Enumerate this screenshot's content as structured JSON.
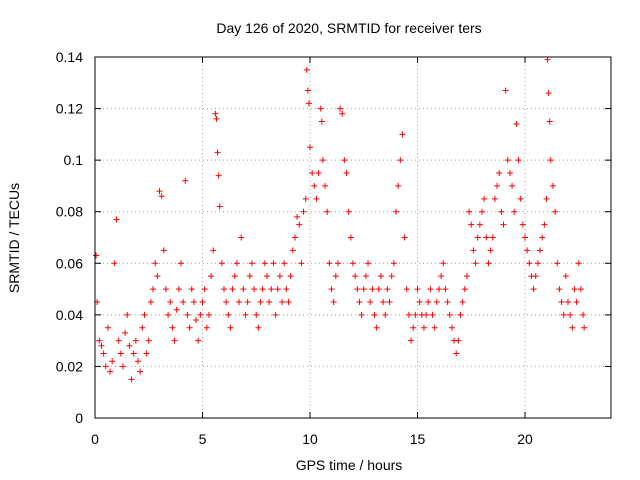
{
  "chart_data": {
    "type": "scatter",
    "title": "Day 126 of 2020, SRMTID for receiver ters",
    "xlabel": "GPS time / hours",
    "ylabel": "SRMTID / TECUs",
    "xlim": [
      0,
      24
    ],
    "ylim": [
      0,
      0.14
    ],
    "xticks": [
      0,
      5,
      10,
      15,
      20
    ],
    "xtick_labels": [
      "0",
      "5",
      "10",
      "15",
      "20"
    ],
    "yticks": [
      0,
      0.02,
      0.04,
      0.06,
      0.08,
      0.1,
      0.12,
      0.14
    ],
    "ytick_labels": [
      "0",
      "0.02",
      "0.04",
      "0.06",
      "0.08",
      "0.1",
      "0.12",
      "0.14"
    ],
    "grid": true,
    "marker": "+",
    "color": "#ff0000",
    "series": [
      {
        "name": "SRMTID",
        "points": [
          [
            0.05,
            0.063
          ],
          [
            0.1,
            0.045
          ],
          [
            0.2,
            0.03
          ],
          [
            0.3,
            0.028
          ],
          [
            0.4,
            0.025
          ],
          [
            0.5,
            0.02
          ],
          [
            0.6,
            0.035
          ],
          [
            0.7,
            0.018
          ],
          [
            0.8,
            0.022
          ],
          [
            0.9,
            0.06
          ],
          [
            1.0,
            0.077
          ],
          [
            1.1,
            0.03
          ],
          [
            1.2,
            0.025
          ],
          [
            1.3,
            0.02
          ],
          [
            1.4,
            0.033
          ],
          [
            1.5,
            0.04
          ],
          [
            1.6,
            0.028
          ],
          [
            1.7,
            0.015
          ],
          [
            1.8,
            0.025
          ],
          [
            1.9,
            0.03
          ],
          [
            2.0,
            0.022
          ],
          [
            2.1,
            0.018
          ],
          [
            2.2,
            0.035
          ],
          [
            2.3,
            0.04
          ],
          [
            2.4,
            0.025
          ],
          [
            2.5,
            0.03
          ],
          [
            2.6,
            0.045
          ],
          [
            2.7,
            0.05
          ],
          [
            2.8,
            0.06
          ],
          [
            2.9,
            0.055
          ],
          [
            3.0,
            0.088
          ],
          [
            3.1,
            0.086
          ],
          [
            3.2,
            0.065
          ],
          [
            3.3,
            0.05
          ],
          [
            3.4,
            0.04
          ],
          [
            3.5,
            0.045
          ],
          [
            3.6,
            0.035
          ],
          [
            3.7,
            0.03
          ],
          [
            3.8,
            0.042
          ],
          [
            3.9,
            0.05
          ],
          [
            4.0,
            0.06
          ],
          [
            4.1,
            0.045
          ],
          [
            4.2,
            0.092
          ],
          [
            4.3,
            0.04
          ],
          [
            4.4,
            0.035
          ],
          [
            4.5,
            0.05
          ],
          [
            4.6,
            0.045
          ],
          [
            4.7,
            0.038
          ],
          [
            4.8,
            0.03
          ],
          [
            4.9,
            0.04
          ],
          [
            5.0,
            0.045
          ],
          [
            5.1,
            0.05
          ],
          [
            5.2,
            0.035
          ],
          [
            5.3,
            0.04
          ],
          [
            5.4,
            0.055
          ],
          [
            5.5,
            0.065
          ],
          [
            5.6,
            0.118
          ],
          [
            5.65,
            0.116
          ],
          [
            5.7,
            0.103
          ],
          [
            5.75,
            0.094
          ],
          [
            5.8,
            0.082
          ],
          [
            5.9,
            0.06
          ],
          [
            6.0,
            0.05
          ],
          [
            6.1,
            0.045
          ],
          [
            6.2,
            0.04
          ],
          [
            6.3,
            0.035
          ],
          [
            6.4,
            0.05
          ],
          [
            6.5,
            0.055
          ],
          [
            6.6,
            0.06
          ],
          [
            6.7,
            0.045
          ],
          [
            6.8,
            0.07
          ],
          [
            6.9,
            0.05
          ],
          [
            7.0,
            0.04
          ],
          [
            7.1,
            0.045
          ],
          [
            7.2,
            0.055
          ],
          [
            7.3,
            0.06
          ],
          [
            7.4,
            0.05
          ],
          [
            7.5,
            0.04
          ],
          [
            7.6,
            0.035
          ],
          [
            7.7,
            0.045
          ],
          [
            7.8,
            0.05
          ],
          [
            7.9,
            0.06
          ],
          [
            8.0,
            0.055
          ],
          [
            8.1,
            0.045
          ],
          [
            8.2,
            0.05
          ],
          [
            8.3,
            0.06
          ],
          [
            8.4,
            0.04
          ],
          [
            8.5,
            0.05
          ],
          [
            8.6,
            0.055
          ],
          [
            8.7,
            0.045
          ],
          [
            8.8,
            0.06
          ],
          [
            8.9,
            0.05
          ],
          [
            9.0,
            0.045
          ],
          [
            9.1,
            0.055
          ],
          [
            9.2,
            0.065
          ],
          [
            9.3,
            0.07
          ],
          [
            9.4,
            0.078
          ],
          [
            9.5,
            0.075
          ],
          [
            9.6,
            0.06
          ],
          [
            9.7,
            0.08
          ],
          [
            9.8,
            0.085
          ],
          [
            9.85,
            0.135
          ],
          [
            9.9,
            0.127
          ],
          [
            9.95,
            0.122
          ],
          [
            10.0,
            0.105
          ],
          [
            10.1,
            0.095
          ],
          [
            10.2,
            0.09
          ],
          [
            10.3,
            0.085
          ],
          [
            10.4,
            0.095
          ],
          [
            10.5,
            0.12
          ],
          [
            10.55,
            0.115
          ],
          [
            10.6,
            0.1
          ],
          [
            10.7,
            0.09
          ],
          [
            10.8,
            0.08
          ],
          [
            10.9,
            0.06
          ],
          [
            11.0,
            0.05
          ],
          [
            11.1,
            0.045
          ],
          [
            11.2,
            0.055
          ],
          [
            11.3,
            0.06
          ],
          [
            11.4,
            0.12
          ],
          [
            11.5,
            0.118
          ],
          [
            11.6,
            0.1
          ],
          [
            11.7,
            0.095
          ],
          [
            11.8,
            0.08
          ],
          [
            11.9,
            0.07
          ],
          [
            12.0,
            0.06
          ],
          [
            12.1,
            0.055
          ],
          [
            12.2,
            0.05
          ],
          [
            12.3,
            0.045
          ],
          [
            12.4,
            0.04
          ],
          [
            12.5,
            0.05
          ],
          [
            12.6,
            0.055
          ],
          [
            12.7,
            0.06
          ],
          [
            12.8,
            0.045
          ],
          [
            12.9,
            0.05
          ],
          [
            13.0,
            0.04
          ],
          [
            13.1,
            0.035
          ],
          [
            13.2,
            0.05
          ],
          [
            13.3,
            0.055
          ],
          [
            13.4,
            0.045
          ],
          [
            13.5,
            0.04
          ],
          [
            13.6,
            0.05
          ],
          [
            13.7,
            0.045
          ],
          [
            13.8,
            0.055
          ],
          [
            13.9,
            0.06
          ],
          [
            14.0,
            0.08
          ],
          [
            14.1,
            0.09
          ],
          [
            14.2,
            0.1
          ],
          [
            14.3,
            0.11
          ],
          [
            14.4,
            0.07
          ],
          [
            14.5,
            0.05
          ],
          [
            14.6,
            0.04
          ],
          [
            14.7,
            0.03
          ],
          [
            14.8,
            0.035
          ],
          [
            14.9,
            0.04
          ],
          [
            15.0,
            0.05
          ],
          [
            15.1,
            0.045
          ],
          [
            15.2,
            0.04
          ],
          [
            15.3,
            0.035
          ],
          [
            15.4,
            0.04
          ],
          [
            15.5,
            0.045
          ],
          [
            15.6,
            0.05
          ],
          [
            15.7,
            0.04
          ],
          [
            15.8,
            0.035
          ],
          [
            15.9,
            0.045
          ],
          [
            16.0,
            0.05
          ],
          [
            16.1,
            0.055
          ],
          [
            16.2,
            0.06
          ],
          [
            16.3,
            0.05
          ],
          [
            16.4,
            0.045
          ],
          [
            16.5,
            0.04
          ],
          [
            16.6,
            0.035
          ],
          [
            16.7,
            0.03
          ],
          [
            16.8,
            0.025
          ],
          [
            16.9,
            0.03
          ],
          [
            17.0,
            0.04
          ],
          [
            17.1,
            0.045
          ],
          [
            17.2,
            0.05
          ],
          [
            17.3,
            0.055
          ],
          [
            17.4,
            0.08
          ],
          [
            17.5,
            0.075
          ],
          [
            17.6,
            0.065
          ],
          [
            17.7,
            0.06
          ],
          [
            17.8,
            0.07
          ],
          [
            17.9,
            0.075
          ],
          [
            18.0,
            0.08
          ],
          [
            18.1,
            0.085
          ],
          [
            18.2,
            0.07
          ],
          [
            18.3,
            0.06
          ],
          [
            18.4,
            0.065
          ],
          [
            18.5,
            0.07
          ],
          [
            18.6,
            0.085
          ],
          [
            18.7,
            0.09
          ],
          [
            18.8,
            0.095
          ],
          [
            18.9,
            0.08
          ],
          [
            19.0,
            0.075
          ],
          [
            19.1,
            0.127
          ],
          [
            19.2,
            0.1
          ],
          [
            19.3,
            0.095
          ],
          [
            19.4,
            0.09
          ],
          [
            19.5,
            0.08
          ],
          [
            19.6,
            0.114
          ],
          [
            19.7,
            0.1
          ],
          [
            19.8,
            0.085
          ],
          [
            19.9,
            0.075
          ],
          [
            20.0,
            0.07
          ],
          [
            20.1,
            0.065
          ],
          [
            20.2,
            0.06
          ],
          [
            20.3,
            0.055
          ],
          [
            20.4,
            0.05
          ],
          [
            20.5,
            0.055
          ],
          [
            20.6,
            0.06
          ],
          [
            20.7,
            0.065
          ],
          [
            20.8,
            0.07
          ],
          [
            20.9,
            0.075
          ],
          [
            21.0,
            0.085
          ],
          [
            21.05,
            0.139
          ],
          [
            21.1,
            0.126
          ],
          [
            21.15,
            0.115
          ],
          [
            21.2,
            0.1
          ],
          [
            21.3,
            0.09
          ],
          [
            21.4,
            0.08
          ],
          [
            21.5,
            0.06
          ],
          [
            21.6,
            0.05
          ],
          [
            21.7,
            0.045
          ],
          [
            21.8,
            0.04
          ],
          [
            21.9,
            0.055
          ],
          [
            22.0,
            0.045
          ],
          [
            22.1,
            0.04
          ],
          [
            22.2,
            0.035
          ],
          [
            22.3,
            0.05
          ],
          [
            22.4,
            0.045
          ],
          [
            22.5,
            0.06
          ],
          [
            22.6,
            0.05
          ],
          [
            22.7,
            0.04
          ],
          [
            22.75,
            0.035
          ]
        ]
      }
    ]
  }
}
